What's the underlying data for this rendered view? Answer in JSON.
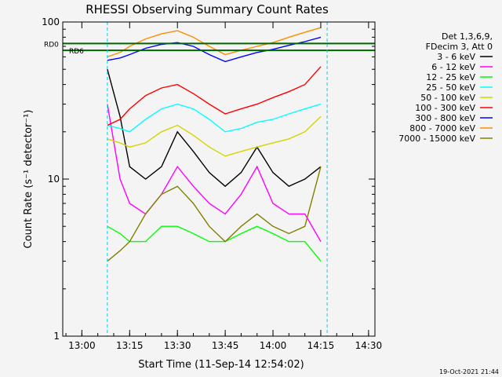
{
  "chart_data": {
    "type": "line",
    "title": "RHESSI Observing Summary Count Rates",
    "xlabel": "Start Time (11-Sep-14 12:54:02)",
    "ylabel": "Count Rate (s⁻¹ detector⁻¹)",
    "xlim": [
      "12:54",
      "14:32"
    ],
    "ylim": [
      1,
      100
    ],
    "yscale": "log",
    "x_ticks": [
      "13:00",
      "13:15",
      "13:30",
      "13:45",
      "14:00",
      "14:15",
      "14:30"
    ],
    "y_ticks": [
      "1",
      "10",
      "100"
    ],
    "legend_header": [
      "Det 1,3,6,9,",
      "FDecim 3, Att 0"
    ],
    "legend_position": "right",
    "data_gaps": [
      [
        "12:54",
        "13:08"
      ],
      [
        "14:17",
        "14:32"
      ]
    ],
    "markers": [
      {
        "label": "RD0",
        "y": 73,
        "color": "#006600"
      },
      {
        "label": "RD6",
        "y": 66,
        "color": "#006600"
      }
    ],
    "series": [
      {
        "name": "3 - 6 keV",
        "color": "#000000",
        "points": [
          [
            "13:08",
            50
          ],
          [
            "13:12",
            25
          ],
          [
            "13:15",
            12
          ],
          [
            "13:20",
            10
          ],
          [
            "13:25",
            12
          ],
          [
            "13:30",
            20
          ],
          [
            "13:35",
            15
          ],
          [
            "13:40",
            11
          ],
          [
            "13:45",
            9
          ],
          [
            "13:50",
            11
          ],
          [
            "13:55",
            16
          ],
          [
            "14:00",
            11
          ],
          [
            "14:05",
            9
          ],
          [
            "14:10",
            10
          ],
          [
            "14:15",
            12
          ]
        ]
      },
      {
        "name": "6 - 12 keV",
        "color": "#ff00ff",
        "points": [
          [
            "13:08",
            30
          ],
          [
            "13:12",
            10
          ],
          [
            "13:15",
            7
          ],
          [
            "13:20",
            6
          ],
          [
            "13:25",
            8
          ],
          [
            "13:30",
            12
          ],
          [
            "13:35",
            9
          ],
          [
            "13:40",
            7
          ],
          [
            "13:45",
            6
          ],
          [
            "13:50",
            8
          ],
          [
            "13:55",
            12
          ],
          [
            "14:00",
            7
          ],
          [
            "14:05",
            6
          ],
          [
            "14:10",
            6
          ],
          [
            "14:15",
            4
          ]
        ]
      },
      {
        "name": "12 - 25 keV",
        "color": "#00ff00",
        "points": [
          [
            "13:08",
            5
          ],
          [
            "13:12",
            4.5
          ],
          [
            "13:15",
            4
          ],
          [
            "13:20",
            4
          ],
          [
            "13:25",
            5
          ],
          [
            "13:30",
            5
          ],
          [
            "13:35",
            4.5
          ],
          [
            "13:40",
            4
          ],
          [
            "13:45",
            4
          ],
          [
            "13:50",
            4.5
          ],
          [
            "13:55",
            5
          ],
          [
            "14:00",
            4.5
          ],
          [
            "14:05",
            4
          ],
          [
            "14:10",
            4
          ],
          [
            "14:15",
            3
          ]
        ]
      },
      {
        "name": "25 - 50 keV",
        "color": "#00ffff",
        "points": [
          [
            "13:08",
            22
          ],
          [
            "13:12",
            21
          ],
          [
            "13:15",
            20
          ],
          [
            "13:20",
            24
          ],
          [
            "13:25",
            28
          ],
          [
            "13:30",
            30
          ],
          [
            "13:35",
            28
          ],
          [
            "13:40",
            24
          ],
          [
            "13:45",
            20
          ],
          [
            "13:50",
            21
          ],
          [
            "13:55",
            23
          ],
          [
            "14:00",
            24
          ],
          [
            "14:05",
            26
          ],
          [
            "14:10",
            28
          ],
          [
            "14:15",
            30
          ]
        ]
      },
      {
        "name": "50 - 100 keV",
        "color": "#d4d400",
        "points": [
          [
            "13:08",
            18
          ],
          [
            "13:12",
            17
          ],
          [
            "13:15",
            16
          ],
          [
            "13:20",
            17
          ],
          [
            "13:25",
            20
          ],
          [
            "13:30",
            22
          ],
          [
            "13:35",
            19
          ],
          [
            "13:40",
            16
          ],
          [
            "13:45",
            14
          ],
          [
            "13:50",
            15
          ],
          [
            "13:55",
            16
          ],
          [
            "14:00",
            17
          ],
          [
            "14:05",
            18
          ],
          [
            "14:10",
            20
          ],
          [
            "14:15",
            25
          ]
        ]
      },
      {
        "name": "100 - 300 keV",
        "color": "#ff0000",
        "points": [
          [
            "13:08",
            22
          ],
          [
            "13:12",
            24
          ],
          [
            "13:15",
            28
          ],
          [
            "13:20",
            34
          ],
          [
            "13:25",
            38
          ],
          [
            "13:30",
            40
          ],
          [
            "13:35",
            35
          ],
          [
            "13:40",
            30
          ],
          [
            "13:45",
            26
          ],
          [
            "13:50",
            28
          ],
          [
            "13:55",
            30
          ],
          [
            "14:00",
            33
          ],
          [
            "14:05",
            36
          ],
          [
            "14:10",
            40
          ],
          [
            "14:15",
            52
          ]
        ]
      },
      {
        "name": "300 - 800 keV",
        "color": "#0000ff",
        "points": [
          [
            "13:08",
            57
          ],
          [
            "13:12",
            59
          ],
          [
            "13:15",
            62
          ],
          [
            "13:20",
            68
          ],
          [
            "13:25",
            72
          ],
          [
            "13:30",
            74
          ],
          [
            "13:35",
            70
          ],
          [
            "13:40",
            62
          ],
          [
            "13:45",
            56
          ],
          [
            "13:50",
            60
          ],
          [
            "13:55",
            64
          ],
          [
            "14:00",
            67
          ],
          [
            "14:05",
            71
          ],
          [
            "14:10",
            75
          ],
          [
            "14:15",
            80
          ]
        ]
      },
      {
        "name": "800 - 7000 keV",
        "color": "#ff8c00",
        "points": [
          [
            "13:08",
            60
          ],
          [
            "13:12",
            64
          ],
          [
            "13:15",
            70
          ],
          [
            "13:20",
            78
          ],
          [
            "13:25",
            84
          ],
          [
            "13:30",
            88
          ],
          [
            "13:35",
            80
          ],
          [
            "13:40",
            70
          ],
          [
            "13:45",
            62
          ],
          [
            "13:50",
            66
          ],
          [
            "13:55",
            70
          ],
          [
            "14:00",
            74
          ],
          [
            "14:05",
            80
          ],
          [
            "14:10",
            86
          ],
          [
            "14:15",
            92
          ]
        ]
      },
      {
        "name": "7000 - 15000 keV",
        "color": "#808000",
        "points": [
          [
            "13:08",
            3
          ],
          [
            "13:12",
            3.5
          ],
          [
            "13:15",
            4
          ],
          [
            "13:20",
            6
          ],
          [
            "13:25",
            8
          ],
          [
            "13:30",
            9
          ],
          [
            "13:35",
            7
          ],
          [
            "13:40",
            5
          ],
          [
            "13:45",
            4
          ],
          [
            "13:50",
            5
          ],
          [
            "13:55",
            6
          ],
          [
            "14:00",
            5
          ],
          [
            "14:05",
            4.5
          ],
          [
            "14:10",
            5
          ],
          [
            "14:15",
            12
          ]
        ]
      }
    ]
  },
  "footer": {
    "timestamp": "19-Oct-2021 21:44"
  }
}
